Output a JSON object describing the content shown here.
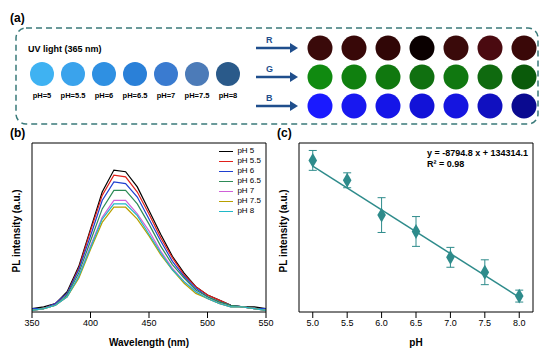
{
  "chart_data": [
    {
      "type": "swatch",
      "title": "(a)",
      "subtitle": "UV light (365 nm)",
      "categories": [
        "pH=5",
        "pH=5.5",
        "pH=6",
        "pH=6.5",
        "pH=7",
        "pH=7.5",
        "pH=8"
      ],
      "colors": [
        "#3fb2f2",
        "#3aa3ec",
        "#2f90e2",
        "#2a80d8",
        "#3a7bd0",
        "#4c7bb8",
        "#2a5a8a"
      ],
      "series": [
        {
          "name": "R",
          "colors": [
            "#3a0a0a",
            "#380808",
            "#300606",
            "#0a0000",
            "#3a0a0a",
            "#4a0a10",
            "#3a0808"
          ]
        },
        {
          "name": "G",
          "colors": [
            "#108a10",
            "#10800f",
            "#10780f",
            "#107010",
            "#107810",
            "#0f6a0f",
            "#0a5a0a"
          ]
        },
        {
          "name": "B",
          "colors": [
            "#1a1aff",
            "#1818f0",
            "#1515e8",
            "#1212d8",
            "#1515e0",
            "#1010c0",
            "#0a0a90"
          ]
        }
      ]
    },
    {
      "type": "line",
      "title": "(b)",
      "x_label": "Wavelength (nm)",
      "y_label": "PL intensity (a.u.)",
      "x": [
        350,
        360,
        370,
        380,
        390,
        400,
        410,
        420,
        430,
        440,
        450,
        460,
        470,
        480,
        490,
        500,
        510,
        520,
        530,
        540,
        550
      ],
      "series": [
        {
          "name": "pH 5",
          "color": "#000000",
          "values": [
            2,
            3,
            5,
            12,
            27,
            49,
            71,
            84,
            83,
            74,
            60,
            46,
            33,
            23,
            15,
            10,
            7,
            4,
            3,
            3,
            2
          ]
        },
        {
          "name": "pH 5.5",
          "color": "#e0201a",
          "values": [
            2,
            2,
            5,
            11,
            26,
            48,
            69,
            81,
            80,
            71,
            58,
            44,
            32,
            22,
            15,
            10,
            7,
            4,
            3,
            2,
            2
          ]
        },
        {
          "name": "pH 6",
          "color": "#1f3fd0",
          "values": [
            2,
            2,
            5,
            11,
            25,
            45,
            66,
            77,
            76,
            68,
            55,
            42,
            30,
            21,
            14,
            9,
            6,
            4,
            3,
            2,
            2
          ]
        },
        {
          "name": "pH 6.5",
          "color": "#2e8b57",
          "values": [
            1,
            2,
            4,
            10,
            23,
            42,
            61,
            72,
            72,
            64,
            52,
            39,
            28,
            20,
            13,
            9,
            6,
            4,
            3,
            2,
            1
          ]
        },
        {
          "name": "pH 7",
          "color": "#d060d8",
          "values": [
            1,
            2,
            4,
            9,
            21,
            39,
            56,
            66,
            66,
            58,
            48,
            36,
            26,
            18,
            12,
            8,
            5,
            3,
            3,
            2,
            1
          ]
        },
        {
          "name": "pH 7.5",
          "color": "#b8a000",
          "values": [
            1,
            2,
            4,
            9,
            20,
            37,
            53,
            62,
            62,
            55,
            45,
            34,
            25,
            17,
            11,
            8,
            5,
            3,
            3,
            2,
            1
          ]
        },
        {
          "name": "pH 8",
          "color": "#20b8c8",
          "values": [
            1,
            2,
            4,
            9,
            21,
            38,
            55,
            64,
            64,
            57,
            46,
            35,
            25,
            18,
            12,
            8,
            5,
            3,
            3,
            2,
            1
          ]
        }
      ],
      "xlim": [
        350,
        550
      ],
      "xticks": [
        350,
        400,
        450,
        500,
        550
      ],
      "ylim": [
        0,
        100
      ],
      "tick_labels": "x",
      "legend": "upper right"
    },
    {
      "type": "scatter",
      "title": "(c)",
      "x_label": "pH",
      "y_label": "PL intensity (a.u.)",
      "x": [
        5,
        5.5,
        6,
        6.5,
        7,
        7.5,
        8
      ],
      "values": [
        91500,
        87500,
        80500,
        77200,
        72000,
        69000,
        64200
      ],
      "errors": [
        2000,
        1500,
        3500,
        3000,
        2000,
        2500,
        1200
      ],
      "fit": {
        "slope": -8794.8,
        "intercept": 134314.1
      },
      "annotations": [
        "y = -8794.8 x + 134314.1",
        "R² = 0.98"
      ],
      "color": "#2e8b8b",
      "marker": "diamond",
      "xlim": [
        4.8,
        8.2
      ],
      "xticks": [
        {
          "value": 5,
          "label": "5.0"
        },
        {
          "value": 5.5,
          "label": "5.5"
        },
        {
          "value": 6,
          "label": "6.0"
        },
        {
          "value": 6.5,
          "label": "6.5"
        },
        {
          "value": 7,
          "label": "7.0"
        },
        {
          "value": 7.5,
          "label": "7.5"
        },
        {
          "value": 8,
          "label": "8.0"
        }
      ],
      "ylim": [
        61000,
        95000
      ],
      "tick_labels": "x"
    }
  ]
}
